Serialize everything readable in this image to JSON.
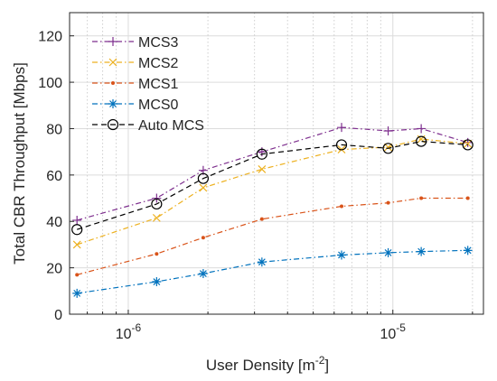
{
  "chart_data": {
    "type": "line",
    "xlabel": "User Density [m^-2]",
    "xlabel_parts": {
      "base": "User Density [m",
      "sup": "-2",
      "close": "]"
    },
    "ylabel": "Total CBR Throughput [Mbps]",
    "x_scale": "log",
    "xlim": [
      6e-07,
      2.2e-05
    ],
    "ylim": [
      0,
      130
    ],
    "grid": true,
    "legend_position": "top-left",
    "x_ticks": [
      {
        "value": 1e-06,
        "base": "10",
        "exp": "-6"
      },
      {
        "value": 1e-05,
        "base": "10",
        "exp": "-5"
      }
    ],
    "y_ticks": [
      0,
      20,
      40,
      60,
      80,
      100,
      120
    ],
    "x": [
      6.4e-07,
      1.28e-06,
      1.92e-06,
      3.2e-06,
      6.4e-06,
      9.6e-06,
      1.28e-05,
      1.92e-05
    ],
    "series": [
      {
        "name": "MCS3",
        "color": "#7E2F8E",
        "marker": "plus",
        "line": "dashdot",
        "values": [
          40.5,
          50,
          62,
          70,
          80.5,
          79,
          80,
          74
        ]
      },
      {
        "name": "MCS2",
        "color": "#EDB120",
        "marker": "x",
        "line": "dashdot",
        "values": [
          30,
          41.5,
          54.5,
          62.5,
          71,
          72,
          75.5,
          73.5
        ]
      },
      {
        "name": "MCS1",
        "color": "#D95319",
        "marker": "dot",
        "line": "dashdot",
        "values": [
          17,
          26,
          33,
          41,
          46.5,
          48,
          50,
          50
        ]
      },
      {
        "name": "MCS0",
        "color": "#0072BD",
        "marker": "asterisk",
        "line": "dashdot",
        "values": [
          9,
          14,
          17.5,
          22.5,
          25.5,
          26.5,
          27,
          27.5
        ]
      },
      {
        "name": "Auto MCS",
        "color": "#000000",
        "marker": "circle",
        "line": "dashed",
        "values": [
          36.5,
          47.5,
          58.5,
          69,
          73,
          71.5,
          74.5,
          73
        ]
      }
    ]
  }
}
